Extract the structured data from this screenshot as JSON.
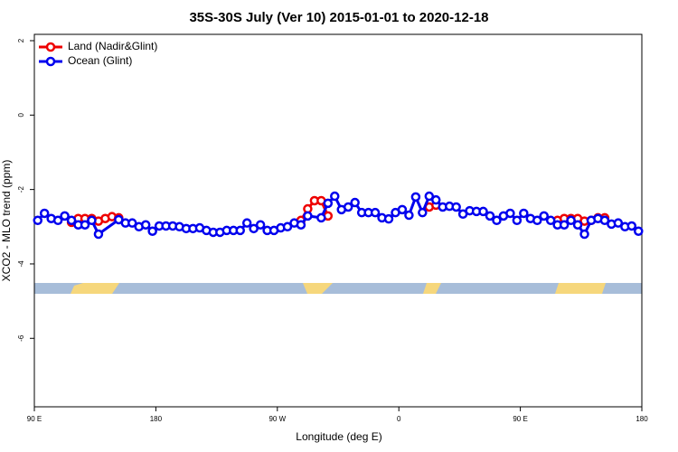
{
  "chart_data": {
    "type": "line",
    "title": "35S-30S July (Ver 10)   2015-01-01 to 2020-12-18",
    "xlabel": "Longitude (deg E)",
    "ylabel": "XCO2 - MLO trend (ppm)",
    "xlim": [
      90,
      540
    ],
    "xticks": [
      {
        "value": 90,
        "label": "90 E"
      },
      {
        "value": 180,
        "label": "180"
      },
      {
        "value": 270,
        "label": "90 W"
      },
      {
        "value": 360,
        "label": "0"
      },
      {
        "value": 450,
        "label": "90 E"
      },
      {
        "value": 540,
        "label": "180"
      }
    ],
    "ylim": [
      -7.84,
      2.17
    ],
    "yticks": [
      -6,
      -4,
      -2,
      0,
      2
    ],
    "legend": "top-left",
    "series": [
      {
        "name": "Land (Nadir&Glint)",
        "color": "#ee0000",
        "x": [
          117.5,
          122.5,
          127.5,
          132.5,
          137.5,
          142.5,
          147.5,
          152.5,
          157.5,
          287.5,
          292.5,
          297.5,
          302.5,
          307.5,
          312.5,
          382.5,
          387.5,
          392.5,
          477.5,
          482.5,
          487.5,
          492.5,
          497.5,
          502.5,
          507.5,
          512.5
        ],
        "values": [
          -2.88,
          -2.78,
          -2.78,
          -2.78,
          -2.85,
          -2.78,
          -2.73,
          -2.76,
          null,
          -2.83,
          -2.52,
          -2.3,
          -2.3,
          -2.71,
          null,
          -2.47,
          -2.42,
          null,
          -2.83,
          -2.78,
          -2.78,
          -2.78,
          -2.85,
          -2.83,
          -2.76,
          -2.76
        ]
      },
      {
        "name": "Ocean (Glint)",
        "color": "#0000ee",
        "x": [
          92.5,
          97.5,
          102.5,
          107.5,
          112.5,
          117.5,
          122.5,
          127.5,
          132.5,
          137.5,
          152.5,
          157.5,
          162.5,
          167.5,
          172.5,
          177.5,
          182.5,
          187.5,
          192.5,
          197.5,
          202.5,
          207.5,
          212.5,
          217.5,
          222.5,
          227.5,
          232.5,
          237.5,
          242.5,
          247.5,
          252.5,
          257.5,
          262.5,
          267.5,
          272.5,
          277.5,
          282.5,
          287.5,
          292.5,
          302.5,
          307.5,
          312.5,
          317.5,
          322.5,
          327.5,
          332.5,
          337.5,
          342.5,
          347.5,
          352.5,
          357.5,
          362.5,
          367.5,
          372.5,
          377.5,
          382.5,
          387.5,
          392.5,
          397.5,
          402.5,
          407.5,
          412.5,
          417.5,
          422.5,
          427.5,
          432.5,
          437.5,
          442.5,
          447.5,
          452.5,
          457.5,
          462.5,
          467.5,
          472.5,
          477.5,
          482.5,
          487.5,
          492.5,
          497.5,
          502.5,
          507.5,
          512.5,
          517.5,
          522.5,
          527.5,
          532.5,
          537.5
        ],
        "values": [
          -2.83,
          -2.64,
          -2.78,
          -2.83,
          -2.71,
          -2.83,
          -2.95,
          -2.95,
          -2.83,
          -3.2,
          -2.81,
          -2.9,
          -2.9,
          -3.0,
          -2.95,
          -3.12,
          -2.98,
          -2.98,
          -2.98,
          -3.0,
          -3.05,
          -3.05,
          -3.03,
          -3.1,
          -3.15,
          -3.15,
          -3.1,
          -3.1,
          -3.1,
          -2.9,
          -3.05,
          -2.95,
          -3.1,
          -3.1,
          -3.03,
          -3.0,
          -2.9,
          -2.95,
          -2.71,
          -2.76,
          -2.37,
          -2.18,
          -2.54,
          -2.47,
          -2.35,
          -2.62,
          -2.62,
          -2.62,
          -2.76,
          -2.79,
          -2.62,
          -2.54,
          -2.69,
          -2.2,
          -2.62,
          -2.18,
          -2.28,
          -2.47,
          -2.45,
          -2.47,
          -2.66,
          -2.57,
          -2.59,
          -2.59,
          -2.71,
          -2.83,
          -2.71,
          -2.64,
          -2.83,
          -2.64,
          -2.78,
          -2.83,
          -2.71,
          -2.83,
          -2.95,
          -2.95,
          -2.83,
          -2.95,
          -3.2,
          -2.83,
          -2.78,
          -2.83,
          -2.93,
          -2.9,
          -3.0,
          -2.98,
          -3.12
        ]
      }
    ]
  }
}
